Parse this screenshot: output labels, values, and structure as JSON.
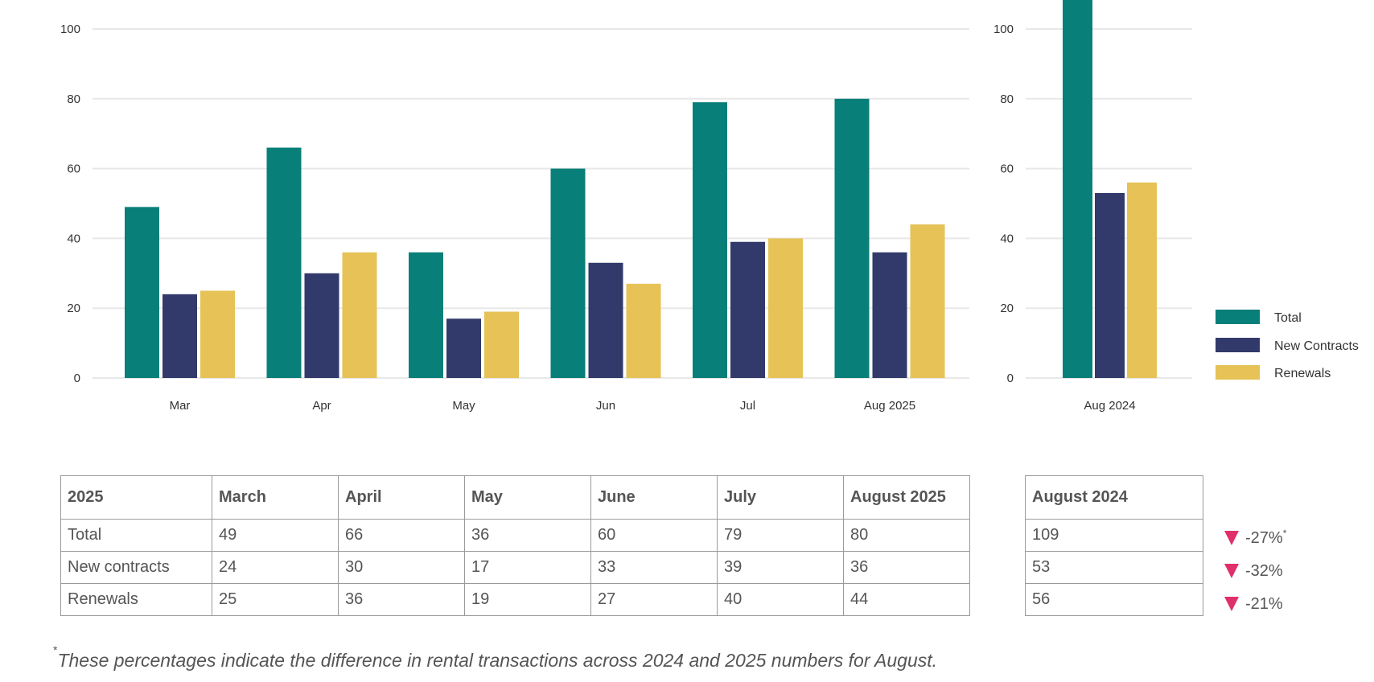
{
  "chart_data": [
    {
      "type": "bar",
      "categories": [
        "Mar",
        "Apr",
        "May",
        "Jun",
        "Jul",
        "Aug 2025"
      ],
      "series": [
        {
          "name": "Total",
          "values": [
            49,
            66,
            36,
            60,
            79,
            80
          ]
        },
        {
          "name": "New Contracts",
          "values": [
            24,
            30,
            17,
            33,
            39,
            36
          ]
        },
        {
          "name": "Renewals",
          "values": [
            25,
            36,
            19,
            27,
            40,
            44
          ]
        }
      ],
      "yticks": [
        "0",
        "20",
        "40",
        "60",
        "80",
        "100"
      ],
      "ylim": [
        0,
        110
      ],
      "grid": true
    },
    {
      "type": "bar",
      "categories": [
        "Aug 2024"
      ],
      "series": [
        {
          "name": "Total",
          "values": [
            109
          ]
        },
        {
          "name": "New Contracts",
          "values": [
            53
          ]
        },
        {
          "name": "Renewals",
          "values": [
            56
          ]
        }
      ],
      "yticks": [
        "0",
        "20",
        "40",
        "60",
        "80",
        "100"
      ],
      "ylim": [
        0,
        109
      ],
      "grid": true,
      "legend": "right"
    }
  ],
  "colors": {
    "total": "#087f78",
    "new_contracts": "#313a6b",
    "renewals": "#e6c257",
    "grid": "#e8e8e8",
    "down": "#e0306a"
  },
  "legend": [
    "Total",
    "New Contracts",
    "Renewals"
  ],
  "table_2025": {
    "headers": [
      "2025",
      "March",
      "April",
      "May",
      "June",
      "July",
      "August 2025"
    ],
    "rows": [
      [
        "Total",
        "49",
        "66",
        "36",
        "60",
        "79",
        "80"
      ],
      [
        "New contracts",
        "24",
        "30",
        "17",
        "33",
        "39",
        "36"
      ],
      [
        "Renewals",
        "25",
        "36",
        "19",
        "27",
        "40",
        "44"
      ]
    ]
  },
  "table_2024": {
    "header": "August 2024",
    "rows": [
      "109",
      "53",
      "56"
    ]
  },
  "changes": [
    "-27%",
    "-32%",
    "-21%"
  ],
  "changes_marker": "*",
  "footnote": {
    "marker": "*",
    "text": "These percentages indicate the difference in rental transactions across 2024 and 2025 numbers for August."
  }
}
